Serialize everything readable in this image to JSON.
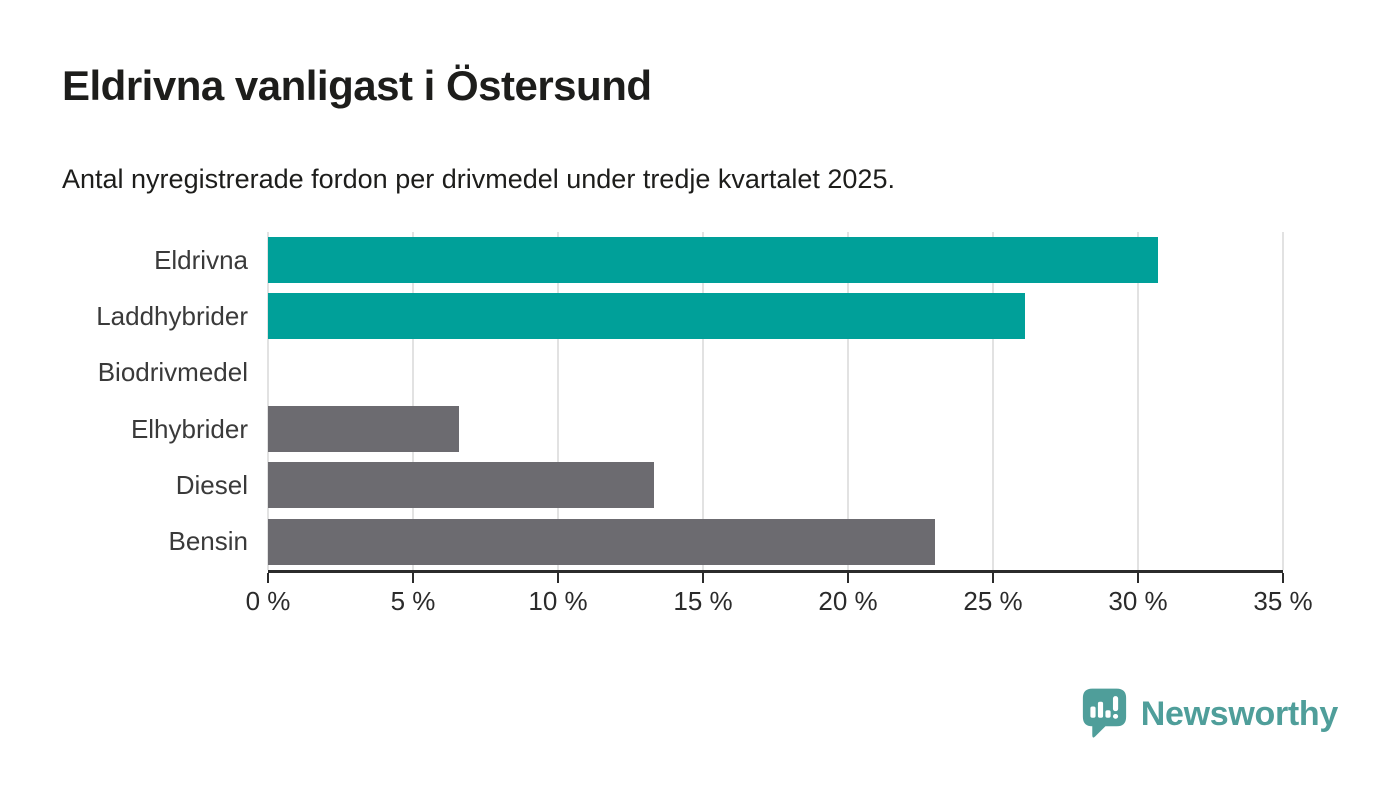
{
  "header": {
    "title": "Eldrivna vanligast i Östersund",
    "subtitle": "Antal nyregistrerade fordon per drivmedel under tredje kvartalet 2025."
  },
  "chart_data": {
    "type": "bar",
    "orientation": "horizontal",
    "categories": [
      "Eldrivna",
      "Laddhybrider",
      "Biodrivmedel",
      "Elhybrider",
      "Diesel",
      "Bensin"
    ],
    "values": [
      30.7,
      26.1,
      0,
      6.6,
      13.3,
      23.0
    ],
    "unit": "%",
    "xlim": [
      0,
      35
    ],
    "x_ticks": [
      0,
      5,
      10,
      15,
      20,
      25,
      30,
      35
    ],
    "x_tick_labels": [
      "0 %",
      "5 %",
      "10 %",
      "15 %",
      "20 %",
      "25 %",
      "30 %",
      "35 %"
    ],
    "bar_colors": [
      "#00a099",
      "#00a099",
      "#6c6b70",
      "#6c6b70",
      "#6c6b70",
      "#6c6b70"
    ],
    "highlight_color": "#00a099",
    "default_color": "#6c6b70",
    "gridline_color": "#e2e2e2",
    "axis_color": "#2b2b2b",
    "grid": true,
    "legend": false,
    "title": "Eldrivna vanligast i Östersund",
    "xlabel": "",
    "ylabel": ""
  },
  "footer": {
    "brand": "Newsworthy",
    "brand_color": "#4f9e9a",
    "logo_icon": "newsworthy-speech-bubble-bar-chart-icon"
  }
}
